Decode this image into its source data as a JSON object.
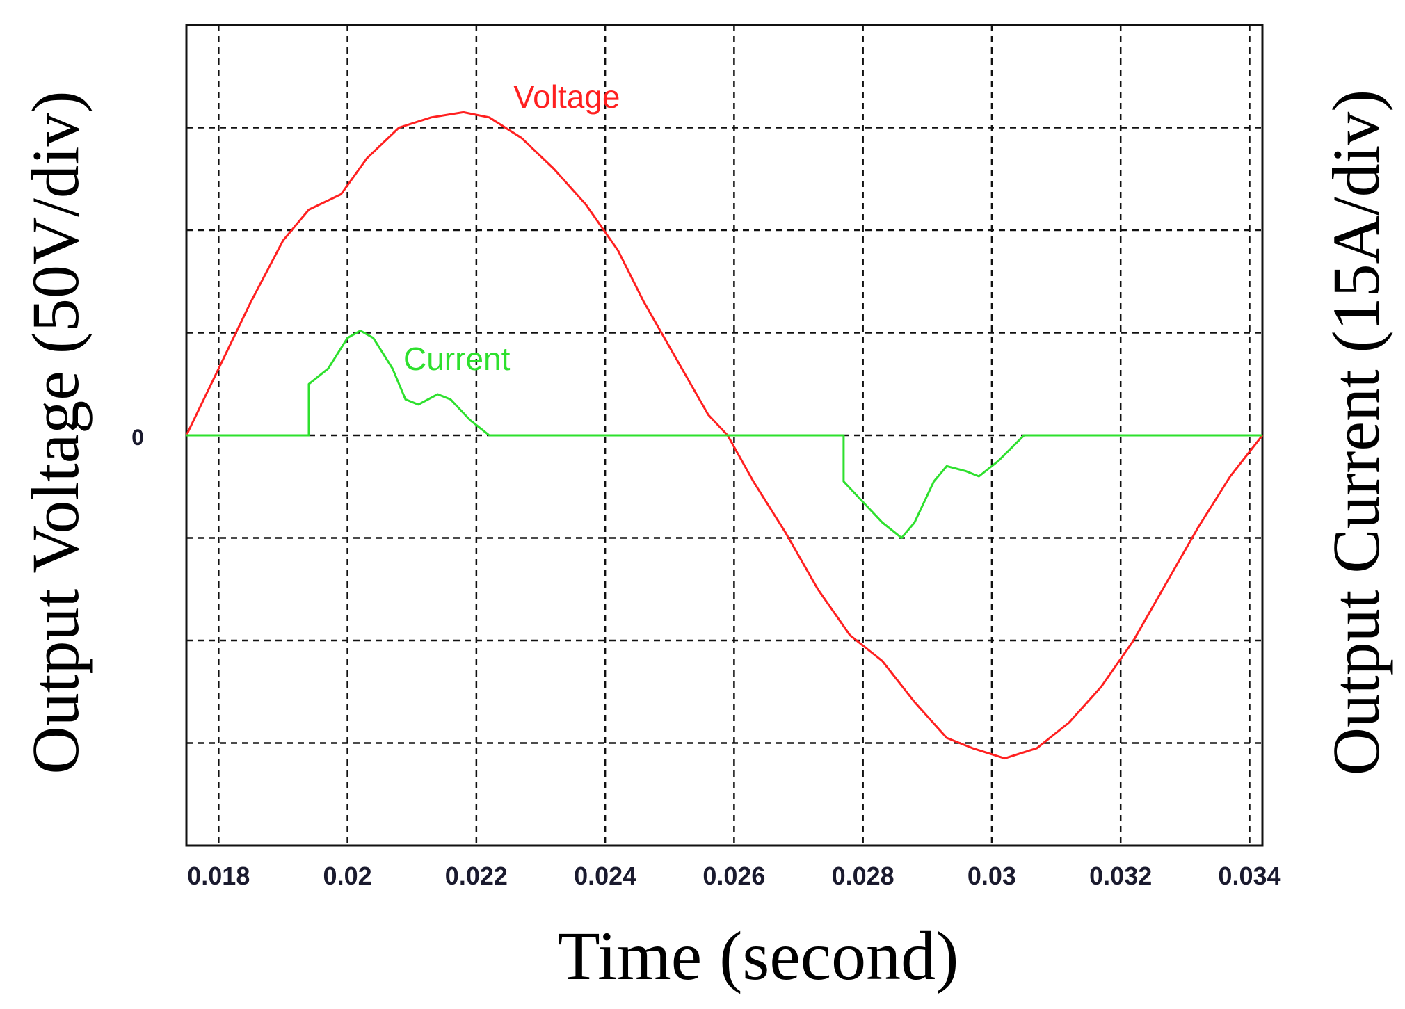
{
  "chart_data": {
    "type": "line",
    "xlabel": "Time (second)",
    "ylabel_left": "Output Voltage (50V/div)",
    "ylabel_right": "Output Current (15A/div)",
    "xlim": [
      0.0175,
      0.0342
    ],
    "x_ticks": [
      0.018,
      0.02,
      0.022,
      0.024,
      0.026,
      0.028,
      0.03,
      0.032,
      0.034
    ],
    "x_tick_labels": [
      "0.018",
      "0.02",
      "0.022",
      "0.024",
      "0.026",
      "0.028",
      "0.03",
      "0.032",
      "0.034"
    ],
    "ylim_div": [
      -4,
      4
    ],
    "y_zero_label": "0",
    "grid": true,
    "series": [
      {
        "name": "Voltage",
        "color": "#ff2020",
        "unit_per_div": "50V/div",
        "points": [
          [
            0.0175,
            0.0
          ],
          [
            0.018,
            0.65
          ],
          [
            0.0185,
            1.3
          ],
          [
            0.019,
            1.9
          ],
          [
            0.0194,
            2.2
          ],
          [
            0.0199,
            2.35
          ],
          [
            0.0203,
            2.7
          ],
          [
            0.0208,
            3.0
          ],
          [
            0.0213,
            3.1
          ],
          [
            0.0218,
            3.15
          ],
          [
            0.0222,
            3.1
          ],
          [
            0.0227,
            2.9
          ],
          [
            0.0232,
            2.6
          ],
          [
            0.0237,
            2.25
          ],
          [
            0.0242,
            1.8
          ],
          [
            0.0246,
            1.3
          ],
          [
            0.0251,
            0.75
          ],
          [
            0.0256,
            0.2
          ],
          [
            0.0259,
            0.0
          ],
          [
            0.0263,
            -0.45
          ],
          [
            0.0268,
            -0.95
          ],
          [
            0.0273,
            -1.5
          ],
          [
            0.0278,
            -1.95
          ],
          [
            0.0283,
            -2.2
          ],
          [
            0.0288,
            -2.6
          ],
          [
            0.0293,
            -2.95
          ],
          [
            0.0297,
            -3.05
          ],
          [
            0.0302,
            -3.15
          ],
          [
            0.0307,
            -3.05
          ],
          [
            0.0312,
            -2.8
          ],
          [
            0.0317,
            -2.45
          ],
          [
            0.0322,
            -2.0
          ],
          [
            0.0327,
            -1.45
          ],
          [
            0.0332,
            -0.9
          ],
          [
            0.0337,
            -0.4
          ],
          [
            0.0342,
            0.0
          ]
        ]
      },
      {
        "name": "Current",
        "color": "#2ee02e",
        "unit_per_div": "15A/div",
        "points": [
          [
            0.0175,
            0.0
          ],
          [
            0.0194,
            0.0
          ],
          [
            0.0194,
            0.5
          ],
          [
            0.0197,
            0.65
          ],
          [
            0.02,
            0.95
          ],
          [
            0.0202,
            1.02
          ],
          [
            0.0204,
            0.95
          ],
          [
            0.0207,
            0.65
          ],
          [
            0.0209,
            0.35
          ],
          [
            0.0211,
            0.3
          ],
          [
            0.0214,
            0.4
          ],
          [
            0.0216,
            0.35
          ],
          [
            0.0219,
            0.15
          ],
          [
            0.0221,
            0.05
          ],
          [
            0.0222,
            0.0
          ],
          [
            0.0277,
            0.0
          ],
          [
            0.0277,
            -0.45
          ],
          [
            0.028,
            -0.65
          ],
          [
            0.0283,
            -0.85
          ],
          [
            0.0286,
            -1.0
          ],
          [
            0.0288,
            -0.85
          ],
          [
            0.0291,
            -0.45
          ],
          [
            0.0293,
            -0.3
          ],
          [
            0.0296,
            -0.35
          ],
          [
            0.0298,
            -0.4
          ],
          [
            0.0301,
            -0.25
          ],
          [
            0.0305,
            0.0
          ],
          [
            0.0342,
            0.0
          ]
        ]
      }
    ]
  }
}
